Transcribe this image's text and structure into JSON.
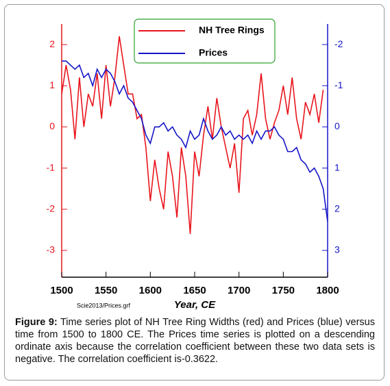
{
  "chart_data": {
    "type": "line",
    "x": [
      1500,
      1505,
      1510,
      1515,
      1520,
      1525,
      1530,
      1535,
      1540,
      1545,
      1550,
      1555,
      1560,
      1565,
      1570,
      1575,
      1580,
      1585,
      1590,
      1595,
      1600,
      1605,
      1610,
      1615,
      1620,
      1625,
      1630,
      1635,
      1640,
      1645,
      1650,
      1655,
      1660,
      1665,
      1670,
      1675,
      1680,
      1685,
      1690,
      1695,
      1700,
      1705,
      1710,
      1715,
      1720,
      1725,
      1730,
      1735,
      1740,
      1745,
      1750,
      1755,
      1760,
      1765,
      1770,
      1775,
      1780,
      1785,
      1790,
      1795,
      1800
    ],
    "series": [
      {
        "name": "NH Tree Rings",
        "color": "#e8141c",
        "axis": "y",
        "values": [
          0.8,
          1.5,
          0.9,
          -0.3,
          1.2,
          0.0,
          0.8,
          0.5,
          1.3,
          0.2,
          1.5,
          0.5,
          1.2,
          2.2,
          1.5,
          0.8,
          0.8,
          0.2,
          0.3,
          -0.5,
          -1.8,
          -0.8,
          -1.5,
          -2.0,
          -0.6,
          -1.2,
          -2.2,
          -0.5,
          -1.2,
          -2.6,
          -0.6,
          -1.2,
          -0.2,
          0.5,
          -0.3,
          0.7,
          0.0,
          -0.5,
          -1.0,
          -0.4,
          -1.6,
          0.2,
          0.4,
          -0.2,
          0.3,
          1.3,
          0.2,
          -0.3,
          0.1,
          0.4,
          1.0,
          0.3,
          1.2,
          0.2,
          -0.3,
          0.6,
          0.3,
          0.8,
          0.1,
          0.9,
          null
        ]
      },
      {
        "name": "Prices",
        "color": "#1414c8",
        "axis": "y2",
        "values": [
          -1.6,
          -1.6,
          -1.5,
          -1.4,
          -1.5,
          -1.2,
          -1.3,
          -1.0,
          -1.4,
          -1.2,
          -1.4,
          -1.3,
          -1.1,
          -0.8,
          -1.0,
          -0.7,
          -0.6,
          -0.4,
          -0.2,
          0.2,
          0.4,
          0.0,
          0.0,
          -0.1,
          0.1,
          0.0,
          0.2,
          0.3,
          0.5,
          0.1,
          0.3,
          0.2,
          -0.2,
          0.1,
          0.3,
          0.2,
          0.0,
          0.2,
          0.1,
          0.3,
          0.2,
          0.3,
          0.2,
          0.4,
          0.1,
          0.3,
          0.1,
          0.1,
          0.0,
          0.2,
          0.3,
          0.6,
          0.6,
          0.5,
          0.8,
          0.9,
          1.1,
          1.0,
          1.2,
          1.5,
          2.3
        ]
      }
    ],
    "xlim": [
      1500,
      1800
    ],
    "xticks": [
      1500,
      1550,
      1600,
      1650,
      1700,
      1750,
      1800
    ],
    "ylim": [
      -3.65,
      2.5
    ],
    "yticks": [
      -3,
      -2,
      -1,
      0,
      1,
      2
    ],
    "y2lim": [
      -2.5,
      3.65
    ],
    "y2ticks": [
      -2,
      -1,
      0,
      1,
      2,
      3
    ],
    "y2_reversed": true,
    "xlabel": "Year, CE",
    "annotation": "Scie2013/Prices.grf",
    "legend_border_color": "#2ca02c"
  },
  "caption": {
    "label": "Figure 9:",
    "text": "Time series plot of NH Tree Ring Widths (red) and Prices (blue) versus time from 1500 to 1800 CE. The Prices time series is plotted on a descending ordinate axis because the correlation coefficient between these two data sets is negative. The correlation coefficient is-0.3622."
  }
}
